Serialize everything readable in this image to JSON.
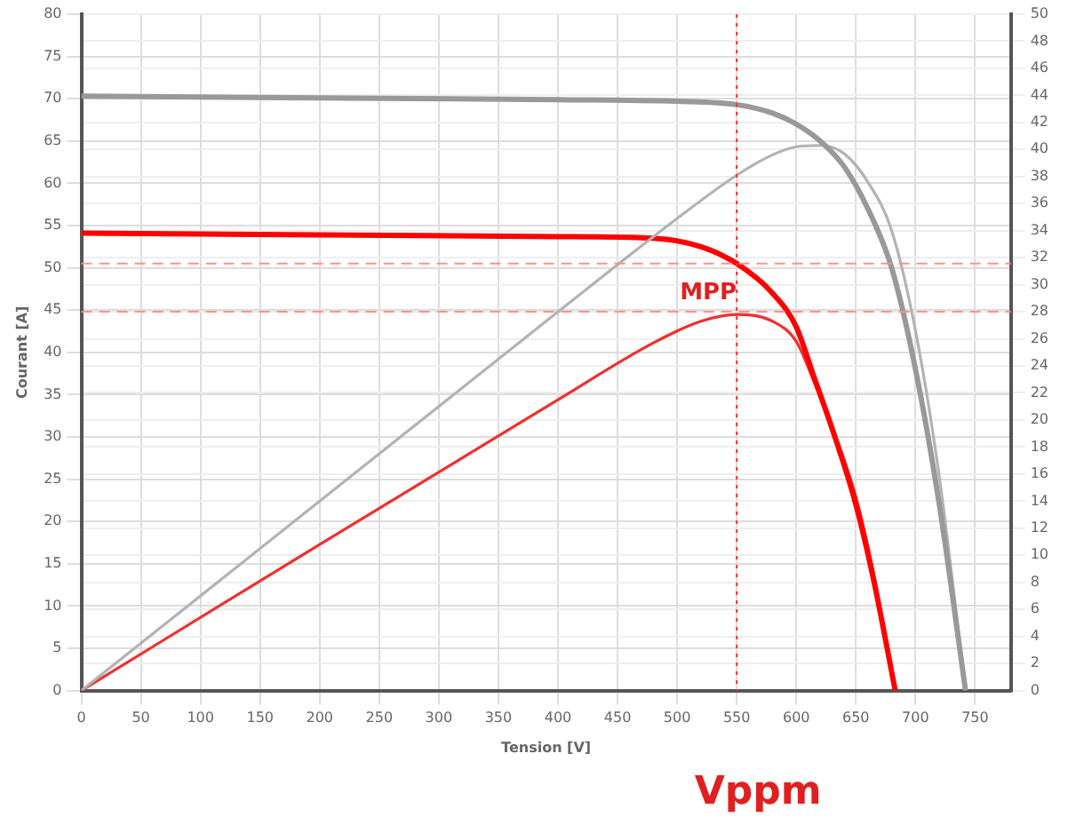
{
  "chart_data": {
    "type": "line",
    "xlabel": "Tension [V]",
    "ylabel": "Courant [A]",
    "xlim": [
      0,
      780
    ],
    "xticks": [
      0,
      50,
      100,
      150,
      200,
      250,
      300,
      350,
      400,
      450,
      500,
      550,
      600,
      650,
      700,
      750
    ],
    "ylim": [
      0,
      80
    ],
    "yticks": [
      0,
      5,
      10,
      15,
      20,
      25,
      30,
      35,
      40,
      45,
      50,
      55,
      60,
      65,
      70,
      75,
      80
    ],
    "y2lim": [
      0,
      50
    ],
    "y2ticks": [
      0,
      2,
      4,
      6,
      8,
      10,
      12,
      14,
      16,
      18,
      20,
      22,
      24,
      26,
      28,
      30,
      32,
      34,
      36,
      38,
      40,
      42,
      44,
      46,
      48,
      50
    ],
    "grid": true,
    "legend": false,
    "marker": "none",
    "line_style": "solid",
    "series": [
      {
        "color": "#999999",
        "x": [
          0,
          200,
          400,
          500,
          550,
          580,
          600,
          620,
          640,
          660,
          680,
          700,
          720,
          742
        ],
        "values": [
          70.3,
          70.1,
          69.9,
          69.7,
          69.3,
          68.3,
          67,
          65,
          62,
          57,
          50,
          38,
          22,
          0
        ]
      },
      {
        "color": "#b3b3b3",
        "axis": "y2",
        "x": [
          0,
          200,
          400,
          500,
          550,
          580,
          600,
          620,
          640,
          660,
          680,
          700,
          720,
          742
        ],
        "values": [
          0,
          14,
          28,
          34.9,
          38.1,
          39.6,
          40.2,
          40.3,
          39.7,
          37.6,
          34,
          26.6,
          15.8,
          0
        ]
      },
      {
        "color": "#ff0000",
        "x": [
          0,
          200,
          400,
          480,
          520,
          550,
          580,
          600,
          615,
          630,
          650,
          665,
          683
        ],
        "values": [
          54.1,
          53.9,
          53.7,
          53.5,
          52.5,
          50.5,
          47,
          43,
          37,
          31,
          22,
          13,
          0
        ]
      },
      {
        "color": "#f03030",
        "axis": "y2",
        "x": [
          0,
          200,
          400,
          480,
          520,
          550,
          580,
          600,
          615,
          630,
          650,
          665,
          683
        ],
        "values": [
          0,
          10.8,
          21.5,
          25.7,
          27.3,
          27.8,
          27.3,
          25.8,
          22.8,
          19.5,
          14.3,
          8.6,
          0
        ]
      }
    ],
    "ref_lines": [
      {
        "axis": "y",
        "value": 50.5,
        "color": "#ff9090",
        "line_style": "dashed"
      },
      {
        "axis": "y2",
        "value": 28,
        "color": "#ff9090",
        "line_style": "dashed"
      },
      {
        "axis": "x",
        "value": 550,
        "color": "#ff3030",
        "line_style": "dotted"
      }
    ],
    "annotations": [
      {
        "text": "MPP",
        "x": 550,
        "y": 44.8
      },
      "Vppm"
    ]
  }
}
